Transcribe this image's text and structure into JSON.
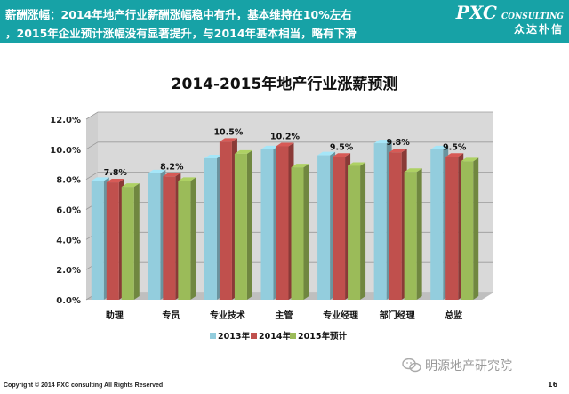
{
  "header": {
    "line1_title": "薪酬涨幅：",
    "line1_text": "2014年地产行业薪酬涨幅稳中有升，基本维持在10%左右",
    "line2_text": "，2015年企业预计涨幅没有显著提升，与2014年基本相当，略有下滑"
  },
  "logo": {
    "main": "PXC",
    "sub": "CONSULTING",
    "cn": "众达朴信"
  },
  "chart_data": {
    "type": "bar",
    "title": "2014-2015年地产行业涨薪预测",
    "categories": [
      "助理",
      "专员",
      "专业技术",
      "主管",
      "专业经理",
      "部门经理",
      "总监"
    ],
    "series": [
      {
        "name": "2013年",
        "color": "#93cddd",
        "values": [
          7.9,
          8.4,
          9.4,
          10.0,
          9.6,
          10.4,
          10.0
        ]
      },
      {
        "name": "2014年",
        "color": "#c0504d",
        "values": [
          7.8,
          8.2,
          10.5,
          10.2,
          9.5,
          9.8,
          9.5
        ]
      },
      {
        "name": "2015年预计",
        "color": "#9bbb59",
        "values": [
          7.5,
          7.9,
          9.7,
          8.8,
          8.9,
          8.5,
          9.2
        ]
      }
    ],
    "data_labels": [
      "7.8%",
      "8.2%",
      "10.5%",
      "10.2%",
      "9.5%",
      "9.8%",
      "9.5%"
    ],
    "yticks": [
      "0.0%",
      "2.0%",
      "4.0%",
      "6.0%",
      "8.0%",
      "10.0%",
      "12.0%"
    ],
    "ylim": [
      0,
      12
    ],
    "grid": true,
    "legend_position": "bottom"
  },
  "footer": {
    "copyright": "Copyright © 2014  PXC consulting All Rights Reserved",
    "page": "16",
    "watermark": "明源地产研究院"
  },
  "colors": {
    "header_bg": "#17a2a6",
    "wall": "#d9d9d9",
    "floor": "#bfbfbf"
  }
}
